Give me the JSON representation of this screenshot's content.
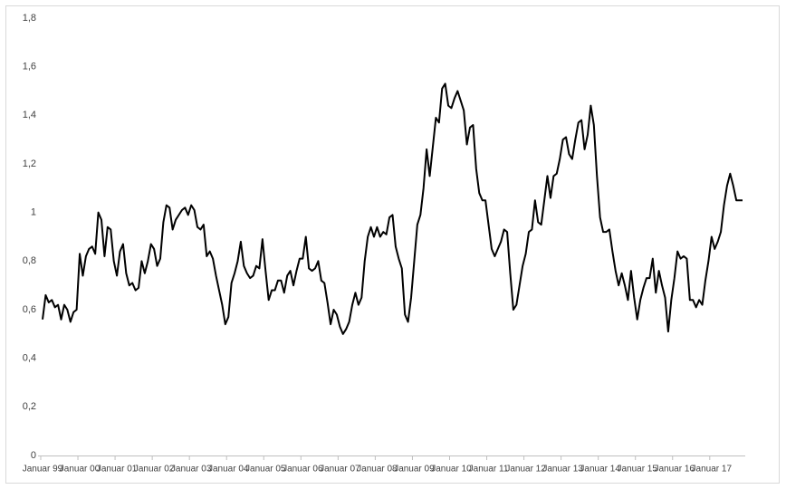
{
  "chart_data": {
    "type": "line",
    "color": "#000000",
    "categories": [
      "Januar 99",
      null,
      null,
      null,
      null,
      null,
      null,
      null,
      null,
      null,
      null,
      null,
      "Januar 00",
      null,
      null,
      null,
      null,
      null,
      null,
      null,
      null,
      null,
      null,
      null,
      "Januar 01",
      null,
      null,
      null,
      null,
      null,
      null,
      null,
      null,
      null,
      null,
      null,
      "Januar 02",
      null,
      null,
      null,
      null,
      null,
      null,
      null,
      null,
      null,
      null,
      null,
      "Januar 03",
      null,
      null,
      null,
      null,
      null,
      null,
      null,
      null,
      null,
      null,
      null,
      "Januar 04",
      null,
      null,
      null,
      null,
      null,
      null,
      null,
      null,
      null,
      null,
      null,
      "Januar 05",
      null,
      null,
      null,
      null,
      null,
      null,
      null,
      null,
      null,
      null,
      null,
      "Januar 06",
      null,
      null,
      null,
      null,
      null,
      null,
      null,
      null,
      null,
      null,
      null,
      "Januar 07",
      null,
      null,
      null,
      null,
      null,
      null,
      null,
      null,
      null,
      null,
      null,
      "Januar 08",
      null,
      null,
      null,
      null,
      null,
      null,
      null,
      null,
      null,
      null,
      null,
      "Januar 09",
      null,
      null,
      null,
      null,
      null,
      null,
      null,
      null,
      null,
      null,
      null,
      "Januar 10",
      null,
      null,
      null,
      null,
      null,
      null,
      null,
      null,
      null,
      null,
      null,
      "Januar 11",
      null,
      null,
      null,
      null,
      null,
      null,
      null,
      null,
      null,
      null,
      null,
      "Januar 12",
      null,
      null,
      null,
      null,
      null,
      null,
      null,
      null,
      null,
      null,
      null,
      "Januar 13",
      null,
      null,
      null,
      null,
      null,
      null,
      null,
      null,
      null,
      null,
      null,
      "Januar 14",
      null,
      null,
      null,
      null,
      null,
      null,
      null,
      null,
      null,
      null,
      null,
      "Januar 15",
      null,
      null,
      null,
      null,
      null,
      null,
      null,
      null,
      null,
      null,
      null,
      "Januar 16",
      null,
      null,
      null,
      null,
      null,
      null,
      null,
      null,
      null,
      null,
      null,
      "Januar 17",
      null,
      null,
      null,
      null,
      null,
      null,
      null,
      null,
      null,
      null
    ],
    "values": [
      0.56,
      0.66,
      0.63,
      0.64,
      0.61,
      0.62,
      0.56,
      0.62,
      0.6,
      0.55,
      0.59,
      0.6,
      0.83,
      0.74,
      0.82,
      0.85,
      0.86,
      0.83,
      1.0,
      0.97,
      0.82,
      0.94,
      0.93,
      0.8,
      0.74,
      0.84,
      0.87,
      0.75,
      0.7,
      0.71,
      0.68,
      0.69,
      0.8,
      0.75,
      0.8,
      0.87,
      0.85,
      0.78,
      0.81,
      0.96,
      1.03,
      1.02,
      0.93,
      0.97,
      0.99,
      1.01,
      1.02,
      0.99,
      1.03,
      1.01,
      0.94,
      0.93,
      0.95,
      0.82,
      0.84,
      0.81,
      0.74,
      0.68,
      0.62,
      0.54,
      0.57,
      0.71,
      0.75,
      0.8,
      0.88,
      0.78,
      0.75,
      0.73,
      0.74,
      0.78,
      0.77,
      0.89,
      0.76,
      0.64,
      0.68,
      0.68,
      0.72,
      0.72,
      0.67,
      0.74,
      0.76,
      0.7,
      0.76,
      0.81,
      0.81,
      0.9,
      0.77,
      0.76,
      0.77,
      0.8,
      0.72,
      0.71,
      0.63,
      0.54,
      0.6,
      0.58,
      0.53,
      0.5,
      0.52,
      0.55,
      0.62,
      0.67,
      0.62,
      0.65,
      0.8,
      0.9,
      0.94,
      0.9,
      0.94,
      0.9,
      0.92,
      0.91,
      0.98,
      0.99,
      0.86,
      0.81,
      0.77,
      0.58,
      0.55,
      0.65,
      0.8,
      0.95,
      0.99,
      1.1,
      1.26,
      1.15,
      1.27,
      1.39,
      1.37,
      1.51,
      1.53,
      1.44,
      1.43,
      1.47,
      1.5,
      1.46,
      1.42,
      1.28,
      1.35,
      1.36,
      1.18,
      1.08,
      1.05,
      1.05,
      0.95,
      0.85,
      0.82,
      0.85,
      0.88,
      0.93,
      0.92,
      0.75,
      0.6,
      0.62,
      0.7,
      0.78,
      0.83,
      0.92,
      0.93,
      1.05,
      0.96,
      0.95,
      1.05,
      1.15,
      1.06,
      1.15,
      1.16,
      1.22,
      1.3,
      1.31,
      1.24,
      1.22,
      1.3,
      1.37,
      1.38,
      1.26,
      1.32,
      1.44,
      1.36,
      1.15,
      0.98,
      0.92,
      0.92,
      0.93,
      0.84,
      0.76,
      0.7,
      0.75,
      0.7,
      0.64,
      0.76,
      0.65,
      0.56,
      0.64,
      0.69,
      0.73,
      0.73,
      0.81,
      0.67,
      0.76,
      0.7,
      0.65,
      0.51,
      0.64,
      0.73,
      0.84,
      0.81,
      0.82,
      0.81,
      0.64,
      0.64,
      0.61,
      0.64,
      0.62,
      0.72,
      0.8,
      0.9,
      0.85,
      0.88,
      0.92,
      1.03,
      1.11,
      1.16,
      1.11,
      1.05,
      1.05,
      1.05
    ],
    "ylim": [
      0,
      1.8
    ],
    "yticks": [
      0,
      {
        "value": 0.2,
        "label": "0,2"
      },
      {
        "value": 0.4,
        "label": "0,4"
      },
      {
        "value": 0.6,
        "label": "0,6"
      },
      {
        "value": 0.8,
        "label": "0,8"
      },
      1,
      {
        "value": 1.2,
        "label": "1,2"
      },
      {
        "value": 1.4,
        "label": "1,4"
      },
      {
        "value": 1.6,
        "label": "1,6"
      },
      {
        "value": 1.8,
        "label": "1,8"
      }
    ]
  }
}
